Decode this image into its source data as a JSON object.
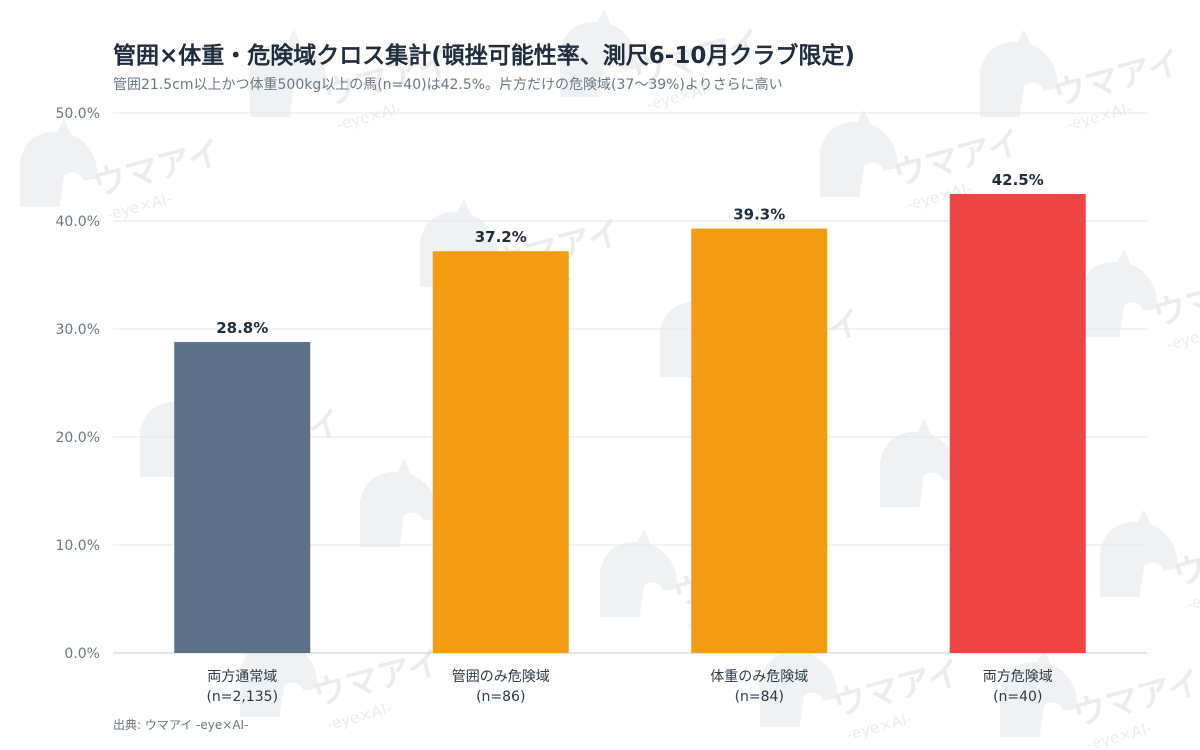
{
  "header": {
    "title": "管囲×体重・危険域クロス集計(頓挫可能性率、測尺6-10月クラブ限定)",
    "subtitle": "管囲21.5cm以上かつ体重500kg以上の馬(n=40)は42.5%。片方だけの危険域(37〜39%)よりさらに高い"
  },
  "footer": {
    "source": "出典: ウマアイ -eye×AI-"
  },
  "watermark": {
    "brand": "ウマアイ",
    "tagline": "-eye×AI-",
    "icon": "horse-head-icon"
  },
  "chart_data": {
    "type": "bar",
    "title": "管囲×体重・危険域クロス集計(頓挫可能性率、測尺6-10月クラブ限定)",
    "categories": [
      "両方通常域",
      "管囲のみ危険域",
      "体重のみ危険域",
      "両方危険域"
    ],
    "category_counts": [
      "(n=2,135)",
      "(n=86)",
      "(n=84)",
      "(n=40)"
    ],
    "values": [
      28.8,
      37.2,
      39.3,
      42.5
    ],
    "value_labels": [
      "28.8%",
      "37.2%",
      "39.3%",
      "42.5%"
    ],
    "colors": [
      "#5f7089",
      "#f39c12",
      "#f39c12",
      "#ef4444"
    ],
    "ylim": [
      0,
      50
    ],
    "yticks": [
      "0.0%",
      "10.0%",
      "20.0%",
      "30.0%",
      "40.0%",
      "50.0%"
    ],
    "grid": true
  }
}
